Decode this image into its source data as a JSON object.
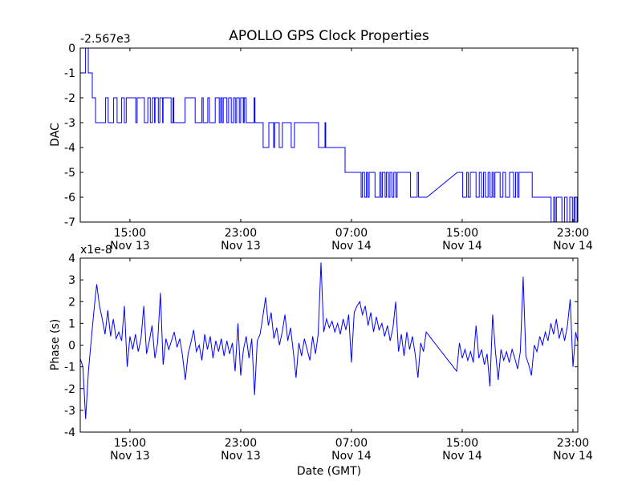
{
  "colors": {
    "line": "#0000ff",
    "axes": "#000000",
    "background": "#ffffff"
  },
  "chart_data": [
    {
      "type": "line",
      "title": "APOLLO GPS Clock Properties",
      "xlabel": "",
      "ylabel": "DAC",
      "offset_text": "-2.567e3",
      "x_units": "hours since Nov 13 00:00 GMT",
      "xlim": [
        11.41,
        47.35
      ],
      "ylim": [
        -7,
        0
      ],
      "yticks": [
        0,
        -1,
        -2,
        -3,
        -4,
        -5,
        -6,
        -7
      ],
      "ytick_labels": [
        "0",
        "-1",
        "-2",
        "-3",
        "-4",
        "-5",
        "-6",
        "-7"
      ],
      "xticks": [
        15,
        23,
        31,
        39,
        47
      ],
      "xtick_labels": [
        [
          "15:00",
          "Nov 13"
        ],
        [
          "23:00",
          "Nov 13"
        ],
        [
          "07:00",
          "Nov 14"
        ],
        [
          "15:00",
          "Nov 14"
        ],
        [
          "23:00",
          "Nov 14"
        ]
      ],
      "drawstyle": "steps-post",
      "series": [
        {
          "name": "DAC",
          "points": [
            [
              11.41,
              -1
            ],
            [
              11.79,
              0
            ],
            [
              11.99,
              -1
            ],
            [
              12.28,
              -2
            ],
            [
              12.52,
              -3
            ],
            [
              13.24,
              -2
            ],
            [
              13.43,
              -3
            ],
            [
              13.82,
              -2
            ],
            [
              14.07,
              -3
            ],
            [
              14.4,
              -2
            ],
            [
              14.59,
              -3
            ],
            [
              14.73,
              -2
            ],
            [
              15.42,
              -3
            ],
            [
              15.52,
              -2
            ],
            [
              16.04,
              -3
            ],
            [
              16.29,
              -2
            ],
            [
              16.47,
              -3
            ],
            [
              16.62,
              -2
            ],
            [
              16.78,
              -3
            ],
            [
              16.81,
              -2
            ],
            [
              17.05,
              -3
            ],
            [
              17.16,
              -2
            ],
            [
              17.36,
              -3
            ],
            [
              17.39,
              -2
            ],
            [
              17.97,
              -3
            ],
            [
              18.11,
              -2
            ],
            [
              18.17,
              -3
            ],
            [
              18.98,
              -2
            ],
            [
              19.71,
              -3
            ],
            [
              20.2,
              -2
            ],
            [
              20.29,
              -3
            ],
            [
              20.62,
              -2
            ],
            [
              20.74,
              -3
            ],
            [
              21.16,
              -2
            ],
            [
              21.45,
              -3
            ],
            [
              21.55,
              -2
            ],
            [
              21.65,
              -3
            ],
            [
              21.74,
              -2
            ],
            [
              22.0,
              -3
            ],
            [
              22.13,
              -2
            ],
            [
              22.32,
              -3
            ],
            [
              22.48,
              -2
            ],
            [
              22.61,
              -3
            ],
            [
              22.71,
              -2
            ],
            [
              22.9,
              -3
            ],
            [
              23.0,
              -2
            ],
            [
              23.19,
              -3
            ],
            [
              23.25,
              -2
            ],
            [
              23.39,
              -3
            ],
            [
              23.97,
              -2
            ],
            [
              24.03,
              -3
            ],
            [
              24.62,
              -4
            ],
            [
              25.03,
              -3
            ],
            [
              25.38,
              -4
            ],
            [
              25.45,
              -3
            ],
            [
              25.78,
              -4
            ],
            [
              26.01,
              -3
            ],
            [
              26.65,
              -4
            ],
            [
              26.88,
              -3
            ],
            [
              28.62,
              -4
            ],
            [
              29.09,
              -3
            ],
            [
              29.14,
              -4
            ],
            [
              30.54,
              -5
            ],
            [
              31.7,
              -6
            ],
            [
              31.79,
              -5
            ],
            [
              31.94,
              -6
            ],
            [
              32.08,
              -5
            ],
            [
              32.18,
              -6
            ],
            [
              32.28,
              -5
            ],
            [
              32.7,
              -6
            ],
            [
              33.05,
              -5
            ],
            [
              33.14,
              -6
            ],
            [
              33.24,
              -5
            ],
            [
              33.43,
              -6
            ],
            [
              33.53,
              -5
            ],
            [
              33.67,
              -6
            ],
            [
              33.78,
              -5
            ],
            [
              33.92,
              -6
            ],
            [
              34.06,
              -5
            ],
            [
              34.21,
              -6
            ],
            [
              34.3,
              -5
            ],
            [
              35.27,
              -6
            ],
            [
              35.75,
              -5
            ],
            [
              35.85,
              -6
            ],
            [
              36.45,
              -6
            ],
            [
              38.65,
              -5,
              "linear"
            ],
            [
              39.04,
              -6
            ],
            [
              39.33,
              -5
            ],
            [
              39.43,
              -6
            ],
            [
              39.58,
              -5
            ],
            [
              40.0,
              -6
            ],
            [
              40.23,
              -5
            ],
            [
              40.39,
              -6
            ],
            [
              40.54,
              -5
            ],
            [
              40.68,
              -6
            ],
            [
              40.87,
              -5
            ],
            [
              41.01,
              -6
            ],
            [
              41.16,
              -5
            ],
            [
              41.26,
              -6
            ],
            [
              41.36,
              -5
            ],
            [
              41.74,
              -6
            ],
            [
              41.94,
              -5
            ],
            [
              42.13,
              -6
            ],
            [
              42.42,
              -5
            ],
            [
              42.71,
              -6
            ],
            [
              42.86,
              -5
            ],
            [
              43.0,
              -6
            ],
            [
              43.1,
              -5
            ],
            [
              44.06,
              -6
            ],
            [
              45.42,
              -7
            ],
            [
              45.61,
              -6
            ],
            [
              45.71,
              -7
            ],
            [
              45.8,
              -6
            ],
            [
              46.2,
              -7
            ],
            [
              46.39,
              -6
            ],
            [
              46.58,
              -7
            ],
            [
              46.77,
              -6
            ],
            [
              46.96,
              -7
            ],
            [
              47.07,
              -6
            ],
            [
              47.15,
              -7
            ],
            [
              47.3,
              -6
            ],
            [
              47.35,
              -6
            ]
          ]
        }
      ]
    },
    {
      "type": "line",
      "title": "",
      "xlabel": "Date (GMT)",
      "ylabel": "Phase (s)",
      "offset_text": "x1e-8",
      "x_units": "hours since Nov 13 00:00 GMT",
      "xlim": [
        11.41,
        47.35
      ],
      "ylim": [
        -4,
        4
      ],
      "yticks": [
        4,
        3,
        2,
        1,
        0,
        -1,
        -2,
        -3,
        -4
      ],
      "ytick_labels": [
        "4",
        "3",
        "2",
        "1",
        "0",
        "-1",
        "-2",
        "-3",
        "-4"
      ],
      "xticks": [
        15,
        23,
        31,
        39,
        47
      ],
      "xtick_labels": [
        [
          "15:00",
          "Nov 13"
        ],
        [
          "23:00",
          "Nov 13"
        ],
        [
          "07:00",
          "Nov 14"
        ],
        [
          "15:00",
          "Nov 14"
        ],
        [
          "23:00",
          "Nov 14"
        ]
      ],
      "series": [
        {
          "name": "Phase",
          "t_start": 11.4,
          "t_step": 0.2,
          "values": [
            -0.6,
            -1.0,
            -3.4,
            -1.2,
            0.2,
            1.6,
            2.8,
            1.8,
            1.2,
            0.5,
            1.6,
            0.4,
            1.2,
            0.3,
            0.6,
            0.2,
            1.8,
            -1.0,
            0.4,
            -0.2,
            0.5,
            -0.3,
            0.3,
            1.8,
            -0.4,
            0.2,
            0.9,
            -0.6,
            0.1,
            2.4,
            -0.9,
            0.3,
            -0.2,
            0.2,
            0.6,
            -0.1,
            0.3,
            -0.5,
            -1.6,
            -0.4,
            0.1,
            0.7,
            -0.3,
            0.0,
            -0.7,
            0.5,
            -0.2,
            0.4,
            -0.6,
            0.2,
            -0.3,
            0.3,
            -0.5,
            0.2,
            -0.4,
            0.1,
            -1.2,
            1.0,
            -1.4,
            -0.2,
            0.4,
            -0.6,
            0.3,
            -2.3,
            0.2,
            0.5,
            1.3,
            2.2,
            0.9,
            1.5,
            0.3,
            0.8,
            0.0,
            0.6,
            1.4,
            0.2,
            0.8,
            -0.3,
            -1.5,
            0.1,
            -0.5,
            0.3,
            -0.2,
            -0.7,
            0.4,
            -0.4,
            0.5,
            3.8,
            0.6,
            1.2,
            0.8,
            1.1,
            0.6,
            1.0,
            0.5,
            1.2,
            0.7,
            1.4,
            -0.8,
            1.5,
            1.8,
            2.0,
            1.4,
            1.8,
            0.9,
            1.5,
            0.6,
            1.3,
            0.7,
            1.0,
            0.4,
            0.9,
            0.2,
            0.8,
            2.0,
            -0.3,
            0.5,
            -0.5,
            0.6,
            -0.2,
            0.4,
            -0.4,
            -1.5,
            0.1,
            -0.3,
            0.6,
            0.44,
            0.27,
            0.11,
            -0.05,
            -0.22,
            -0.38,
            -0.55,
            -0.71,
            -0.87,
            -1.04,
            -1.2,
            0.1,
            -0.6,
            -0.2,
            -0.7,
            -0.3,
            -0.8,
            0.9,
            -0.6,
            -0.2,
            -0.9,
            -0.4,
            -1.9,
            1.4,
            -0.3,
            -1.6,
            -0.2,
            -0.7,
            -0.3,
            -0.8,
            -0.2,
            -0.6,
            -1.1,
            -0.3,
            3.15,
            -0.5,
            -0.9,
            -1.4,
            0.0,
            -0.3,
            0.4,
            0.0,
            0.6,
            0.2,
            1.0,
            0.5,
            1.2,
            0.3,
            0.8,
            0.2,
            0.9,
            2.1,
            -1.0,
            0.6,
            0.0
          ]
        }
      ]
    }
  ]
}
